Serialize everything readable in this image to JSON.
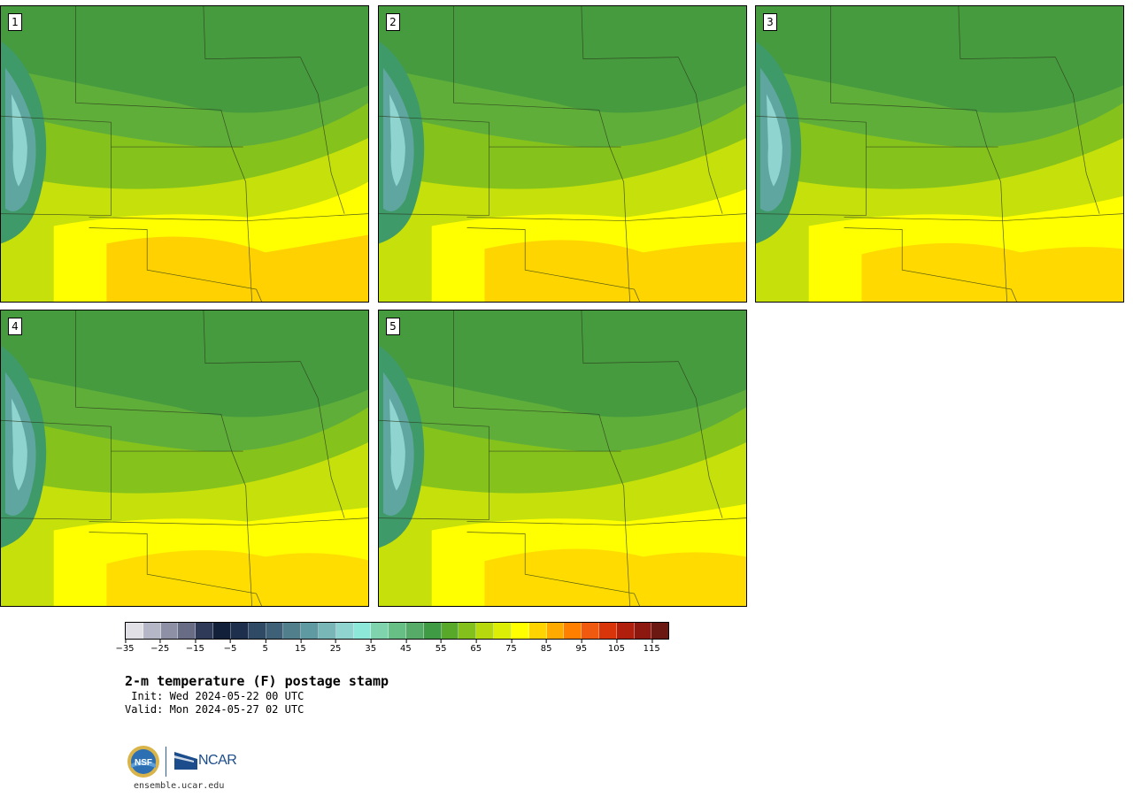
{
  "title": "2-m temperature (F) postage stamp",
  "init": " Init: Wed 2024-05-22 00 UTC",
  "valid": "Valid: Mon 2024-05-27 02 UTC",
  "site": "ensemble.ucar.edu",
  "logos": {
    "nsf_text": "NSF",
    "ncar_text": "NCAR"
  },
  "panels": [
    {
      "label": "1",
      "tint": 0
    },
    {
      "label": "2",
      "tint": 1
    },
    {
      "label": "3",
      "tint": 2
    },
    {
      "label": "4",
      "tint": 3
    },
    {
      "label": "5",
      "tint": 4
    }
  ],
  "colorbar": {
    "colors": [
      "#e0e0e6",
      "#b6b7c6",
      "#8e91a5",
      "#686c84",
      "#2f3a58",
      "#12203a",
      "#1d2f4c",
      "#2e4a64",
      "#3f6177",
      "#517f8c",
      "#5f9aa3",
      "#79b6b7",
      "#8fd4cf",
      "#8ee8da",
      "#7fd3ad",
      "#68bf86",
      "#56ab68",
      "#3f9b44",
      "#58a92a",
      "#83c01b",
      "#b5d90d",
      "#dcee05",
      "#ffff00",
      "#ffd400",
      "#ffaa00",
      "#ff7f00",
      "#ef5a10",
      "#d9350a",
      "#b01e0c",
      "#8c180f",
      "#6b1812"
    ],
    "ticks": [
      -35,
      -25,
      -15,
      -5,
      5,
      15,
      25,
      35,
      45,
      55,
      65,
      75,
      85,
      95,
      105,
      115
    ],
    "min": -35,
    "step": 5
  }
}
